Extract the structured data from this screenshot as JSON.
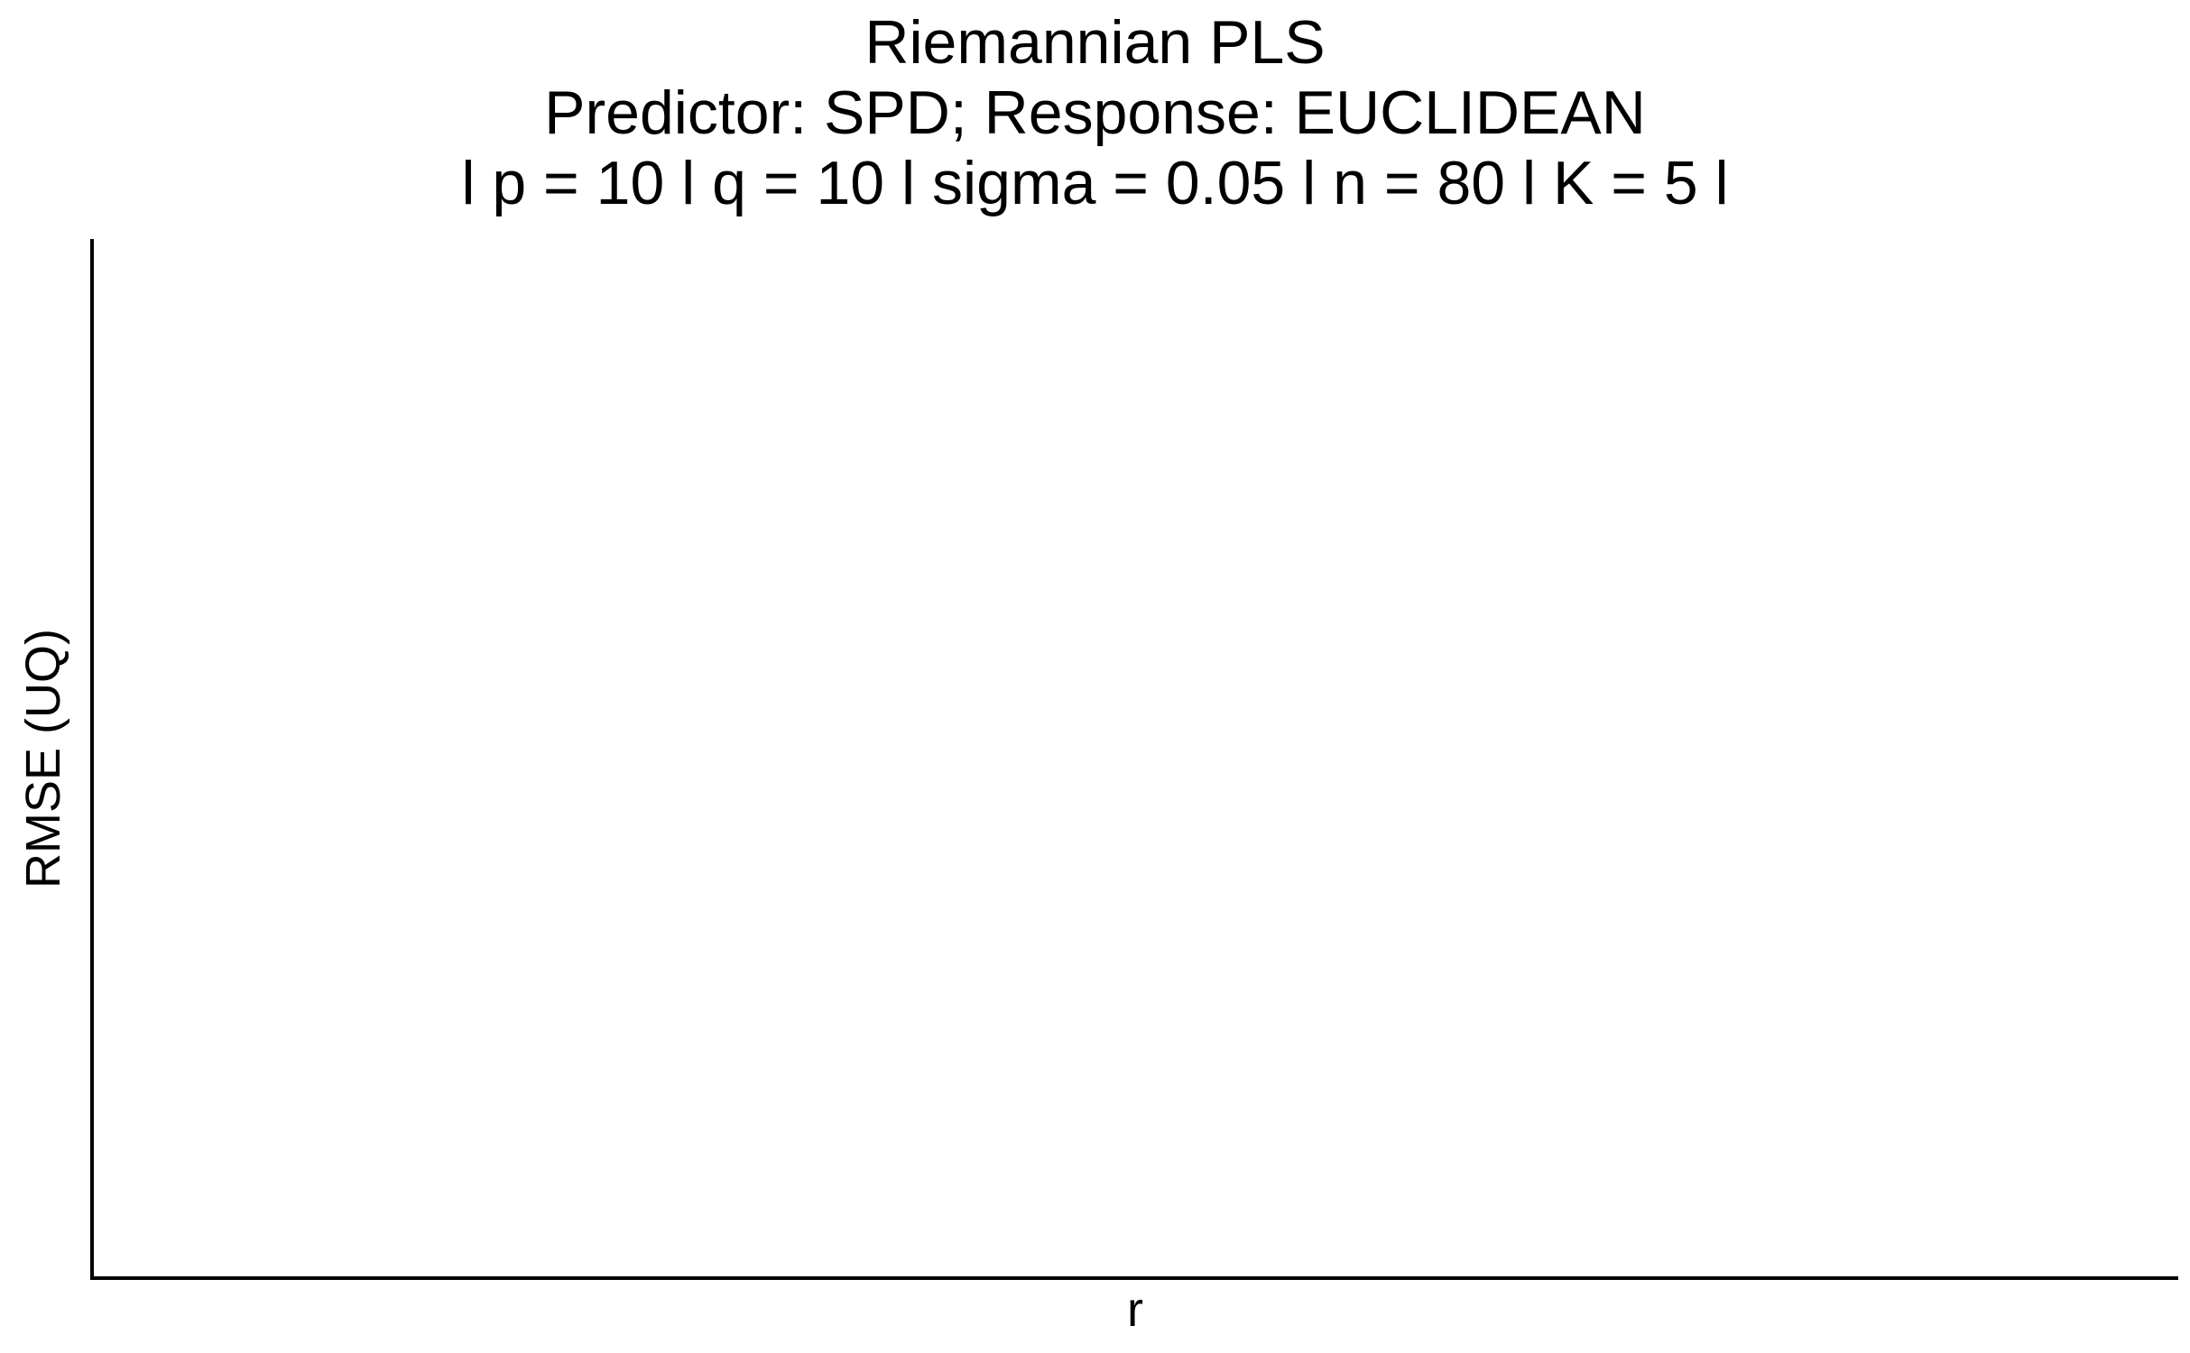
{
  "chart_data": {
    "type": "line",
    "title": "Riemannian PLS",
    "subtitle": "Predictor: SPD; Response: EUCLIDEAN",
    "subtitle2": "l p = 10 l q = 10 l sigma = 0.05 l n = 80 l K = 5 l",
    "xlabel": "r",
    "ylabel": "RMSE (UQ)",
    "series": [],
    "grid": false,
    "legend": "none",
    "axis_color": "#000000",
    "background": "#ffffff"
  }
}
